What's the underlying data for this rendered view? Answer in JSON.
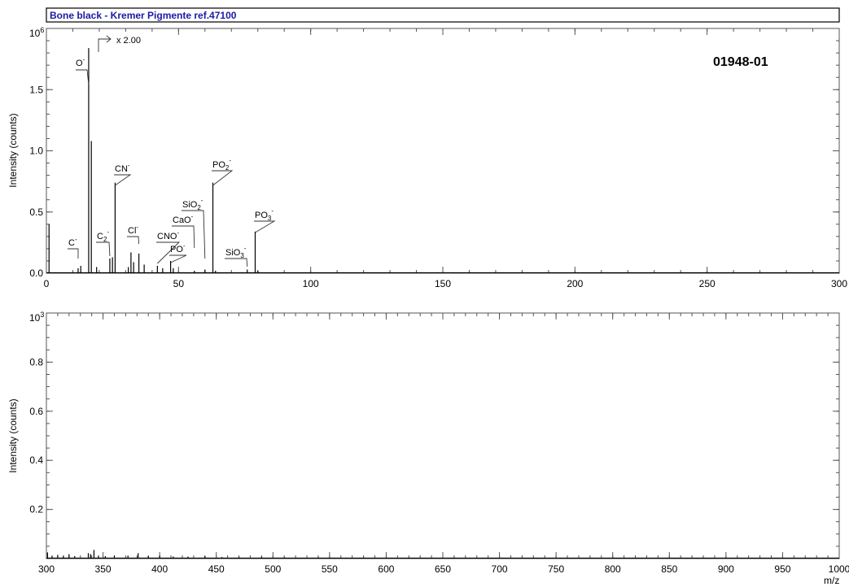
{
  "title": "Bone black - Kremer Pigmente ref.47100",
  "sample_id": "01948-01",
  "scale_annotation": "x 2.00",
  "colors": {
    "title_text": "#1a1aa6",
    "bars": "#000000",
    "frame": "#555555"
  },
  "chart_data": [
    {
      "type": "bar",
      "ylabel": "Intensity (counts)",
      "y_multiplier": "10",
      "y_multiplier_exp": "6",
      "xlim": [
        0,
        300
      ],
      "ylim": [
        0,
        2.0
      ],
      "x_ticks": [
        0,
        50,
        100,
        150,
        200,
        250,
        300
      ],
      "x_tick_labels": [
        "0",
        "50",
        "100",
        "150",
        "200",
        "250",
        "300"
      ],
      "y_ticks": [
        0.0,
        0.5,
        1.0,
        1.5
      ],
      "y_tick_labels": [
        "0.0",
        "0.5",
        "1.0",
        "1.5"
      ],
      "peaks": [
        {
          "x": 1,
          "y": 0.4
        },
        {
          "x": 12,
          "y": 0.04
        },
        {
          "x": 13,
          "y": 0.06
        },
        {
          "x": 16,
          "y": 1.84
        },
        {
          "x": 17,
          "y": 1.08
        },
        {
          "x": 19,
          "y": 0.05
        },
        {
          "x": 24,
          "y": 0.12
        },
        {
          "x": 25,
          "y": 0.13
        },
        {
          "x": 26,
          "y": 0.74
        },
        {
          "x": 31,
          "y": 0.05
        },
        {
          "x": 32,
          "y": 0.17
        },
        {
          "x": 33,
          "y": 0.09
        },
        {
          "x": 35,
          "y": 0.16
        },
        {
          "x": 37,
          "y": 0.07
        },
        {
          "x": 42,
          "y": 0.06
        },
        {
          "x": 44,
          "y": 0.04
        },
        {
          "x": 47,
          "y": 0.1
        },
        {
          "x": 48,
          "y": 0.04
        },
        {
          "x": 56,
          "y": 0.02
        },
        {
          "x": 60,
          "y": 0.03
        },
        {
          "x": 63,
          "y": 0.74
        },
        {
          "x": 64,
          "y": 0.02
        },
        {
          "x": 76,
          "y": 0.03
        },
        {
          "x": 79,
          "y": 0.34
        },
        {
          "x": 80,
          "y": 0.02
        }
      ],
      "peak_labels": [
        {
          "ion": "O",
          "sub": "",
          "sup": "-",
          "x": 16
        },
        {
          "ion": "C",
          "sub": "",
          "sup": "-",
          "x": 12
        },
        {
          "ion": "C",
          "sub": "2",
          "sup": "-",
          "x": 24
        },
        {
          "ion": "CN",
          "sub": "",
          "sup": "-",
          "x": 26
        },
        {
          "ion": "Cl",
          "sub": "",
          "sup": "-",
          "x": 35
        },
        {
          "ion": "CNO",
          "sub": "",
          "sup": "-",
          "x": 42
        },
        {
          "ion": "PO",
          "sub": "",
          "sup": "-",
          "x": 47
        },
        {
          "ion": "CaO",
          "sub": "",
          "sup": "-",
          "x": 56
        },
        {
          "ion": "SiO",
          "sub": "2",
          "sup": "-",
          "x": 60
        },
        {
          "ion": "PO",
          "sub": "2",
          "sup": "-",
          "x": 63
        },
        {
          "ion": "SiO",
          "sub": "3",
          "sup": "-",
          "x": 76
        },
        {
          "ion": "PO",
          "sub": "3",
          "sup": "-",
          "x": 79
        }
      ]
    },
    {
      "type": "bar",
      "ylabel": "Intensity (counts)",
      "xlabel": "m/z",
      "y_multiplier": "10",
      "y_multiplier_exp": "3",
      "xlim": [
        300,
        1000
      ],
      "ylim": [
        0,
        1.0
      ],
      "x_ticks": [
        300,
        350,
        400,
        450,
        500,
        550,
        600,
        650,
        700,
        750,
        800,
        850,
        900,
        950,
        1000
      ],
      "x_tick_labels": [
        "300",
        "350",
        "400",
        "450",
        "500",
        "550",
        "600",
        "650",
        "700",
        "750",
        "800",
        "850",
        "900",
        "950",
        "1000"
      ],
      "y_ticks": [
        0.2,
        0.4,
        0.6,
        0.8
      ],
      "y_tick_labels": [
        "0.2",
        "0.4",
        "0.6",
        "0.8"
      ],
      "peaks": [
        {
          "x": 301,
          "y": 0.025
        },
        {
          "x": 305,
          "y": 0.012
        },
        {
          "x": 310,
          "y": 0.015
        },
        {
          "x": 315,
          "y": 0.012
        },
        {
          "x": 320,
          "y": 0.018
        },
        {
          "x": 325,
          "y": 0.01
        },
        {
          "x": 337,
          "y": 0.022
        },
        {
          "x": 339,
          "y": 0.018
        },
        {
          "x": 342,
          "y": 0.035
        },
        {
          "x": 346,
          "y": 0.012
        },
        {
          "x": 352,
          "y": 0.01
        },
        {
          "x": 360,
          "y": 0.012
        },
        {
          "x": 372,
          "y": 0.012
        },
        {
          "x": 381,
          "y": 0.022
        },
        {
          "x": 390,
          "y": 0.01
        },
        {
          "x": 400,
          "y": 0.012
        },
        {
          "x": 412,
          "y": 0.008
        },
        {
          "x": 425,
          "y": 0.008
        },
        {
          "x": 440,
          "y": 0.01
        },
        {
          "x": 455,
          "y": 0.006
        },
        {
          "x": 470,
          "y": 0.006
        },
        {
          "x": 490,
          "y": 0.007
        },
        {
          "x": 510,
          "y": 0.005
        },
        {
          "x": 540,
          "y": 0.005
        },
        {
          "x": 580,
          "y": 0.004
        },
        {
          "x": 620,
          "y": 0.004
        },
        {
          "x": 660,
          "y": 0.004
        },
        {
          "x": 700,
          "y": 0.003
        },
        {
          "x": 750,
          "y": 0.003
        },
        {
          "x": 800,
          "y": 0.003
        },
        {
          "x": 850,
          "y": 0.003
        },
        {
          "x": 900,
          "y": 0.003
        },
        {
          "x": 950,
          "y": 0.003
        }
      ]
    }
  ]
}
